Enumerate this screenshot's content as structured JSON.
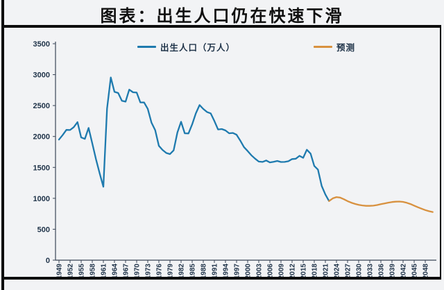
{
  "title": "图表：出生人口仍在快速下滑",
  "legend": [
    {
      "label": "出生人口（万人）",
      "color": "#1e7aae"
    },
    {
      "label": "预测",
      "color": "#d8913f"
    }
  ],
  "colors": {
    "background": "#f2f3f5",
    "frame_rule": "#0b0b0b",
    "axis": "#3a4656",
    "tick_label": "#1e3248",
    "actual_line": "#1e7aae",
    "forecast_line": "#d8913f"
  },
  "chart_data": {
    "type": "line",
    "title": "图表：出生人口仍在快速下滑",
    "xlabel": "",
    "ylabel": "出生人口（万人）",
    "ylim": [
      0,
      3500
    ],
    "y_ticks": [
      0,
      500,
      1000,
      1500,
      2000,
      2500,
      3000,
      3500
    ],
    "x_tick_years": [
      1949,
      1952,
      1955,
      1958,
      1961,
      1964,
      1967,
      1970,
      1973,
      1976,
      1979,
      1982,
      1985,
      1988,
      1991,
      1994,
      1997,
      2000,
      2003,
      2006,
      2009,
      2012,
      2015,
      2018,
      2021,
      2024,
      2027,
      2030,
      2033,
      2036,
      2039,
      2042,
      2045,
      2048
    ],
    "grid": false,
    "legend_position": "top",
    "series": [
      {
        "name": "出生人口（万人）",
        "color": "#1e7aae",
        "start_year": 1949,
        "interval": 1,
        "values": [
          1950,
          2023,
          2107,
          2105,
          2151,
          2232,
          1984,
          1961,
          2138,
          1889,
          1635,
          1402,
          1187,
          2451,
          2954,
          2721,
          2704,
          2577,
          2563,
          2757,
          2715,
          2710,
          2551,
          2550,
          2447,
          2226,
          2102,
          1849,
          1783,
          1733,
          1715,
          1776,
          2064,
          2238,
          2052,
          2050,
          2196,
          2374,
          2508,
          2445,
          2396,
          2374,
          2250,
          2113,
          2120,
          2098,
          2052,
          2057,
          2028,
          1934,
          1827,
          1765,
          1696,
          1641,
          1594,
          1588,
          1612,
          1581,
          1591,
          1604,
          1587,
          1588,
          1600,
          1635,
          1640,
          1687,
          1655,
          1786,
          1723,
          1523,
          1465,
          1200,
          1062,
          956
        ]
      },
      {
        "name": "预测",
        "color": "#d8913f",
        "start_year": 2022,
        "interval": 1,
        "values": [
          956,
          1000,
          1020,
          1012,
          985,
          955,
          930,
          910,
          895,
          885,
          878,
          878,
          882,
          892,
          905,
          918,
          930,
          940,
          946,
          948,
          942,
          928,
          908,
          882,
          856,
          832,
          810,
          792,
          778
        ]
      }
    ]
  }
}
